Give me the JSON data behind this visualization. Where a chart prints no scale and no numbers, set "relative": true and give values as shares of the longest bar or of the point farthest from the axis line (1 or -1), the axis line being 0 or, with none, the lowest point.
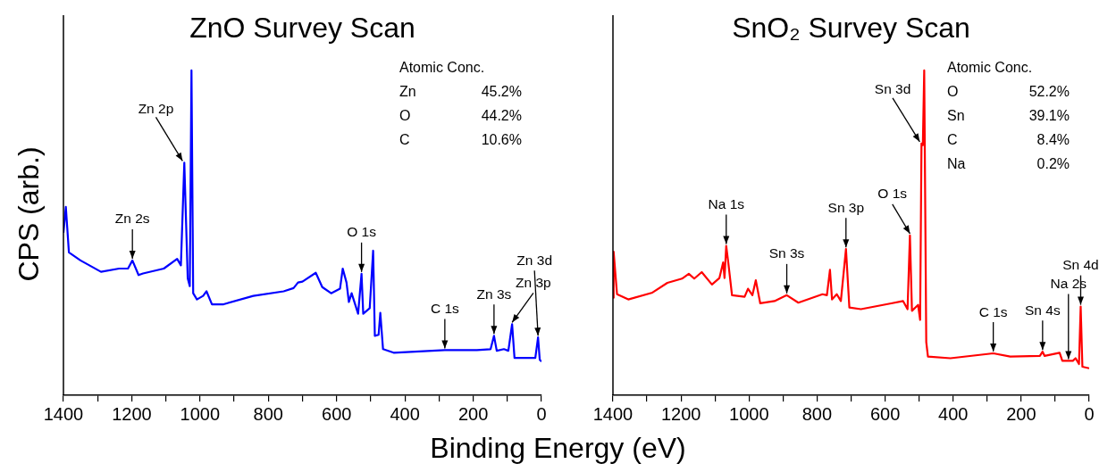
{
  "chart_data": [
    {
      "type": "line",
      "title": "ZnO Survey Scan",
      "xlabel": "Binding Energy (eV)",
      "ylabel": "CPS (arb.)",
      "relative": true,
      "color": "#0000ff",
      "marker": "none",
      "x": [
        1400,
        1393,
        1384,
        1350,
        1290,
        1237,
        1211,
        1198,
        1180,
        1167,
        1106,
        1067,
        1056,
        1046,
        1036,
        1030,
        1025,
        1020,
        1009,
        991,
        981,
        965,
        931,
        844,
        755,
        726,
        713,
        700,
        661,
        642,
        616,
        590,
        582,
        571,
        564,
        556,
        537,
        527,
        522,
        503,
        493,
        488,
        477,
        472,
        464,
        433,
        283,
        189,
        149,
        139,
        131,
        110,
        97,
        86,
        79,
        18,
        10,
        5,
        0
      ],
      "values": [
        0.5,
        0.58,
        0.44,
        0.415,
        0.38,
        0.39,
        0.39,
        0.415,
        0.37,
        0.375,
        0.39,
        0.42,
        0.4,
        0.716,
        0.36,
        0.336,
        1.0,
        0.314,
        0.295,
        0.306,
        0.32,
        0.28,
        0.28,
        0.306,
        0.32,
        0.33,
        0.347,
        0.35,
        0.377,
        0.333,
        0.314,
        0.328,
        0.39,
        0.347,
        0.287,
        0.314,
        0.251,
        0.374,
        0.251,
        0.268,
        0.445,
        0.183,
        0.186,
        0.254,
        0.142,
        0.131,
        0.139,
        0.139,
        0.142,
        0.183,
        0.137,
        0.142,
        0.137,
        0.219,
        0.115,
        0.115,
        0.178,
        0.109,
        0.104
      ],
      "xlim": [
        1400,
        0
      ],
      "xticks": [
        1400,
        {
          "value": 1300,
          "label": null
        },
        1200,
        {
          "value": 1100,
          "label": null
        },
        1000,
        {
          "value": 900,
          "label": null
        },
        800,
        {
          "value": 700,
          "label": null
        },
        600,
        {
          "value": 500,
          "label": null
        },
        400,
        {
          "value": 300,
          "label": null
        },
        200,
        {
          "value": 100,
          "label": null
        },
        0
      ],
      "annotations": [
        {
          "text": "Zn 2s",
          "x": 1198,
          "y": 0.415
        },
        {
          "text": "Zn 2p",
          "x": 1046,
          "y": 0.716
        },
        {
          "text": "O 1s",
          "x": 527,
          "y": 0.374
        },
        {
          "text": "C 1s",
          "x": 283,
          "y": 0.139
        },
        {
          "text": "Zn 3s",
          "x": 139,
          "y": 0.183
        },
        {
          "text": "Zn 3p",
          "x": 86,
          "y": 0.219
        },
        {
          "text": "Zn 3d",
          "x": 10,
          "y": 0.178
        },
        "Atomic Conc.",
        "Zn\t45.2%",
        "O\t44.2%",
        "C\t10.6%"
      ]
    },
    {
      "type": "line",
      "title": "SnO₂ Survey Scan",
      "relative": true,
      "color": "#ff0000",
      "marker": "none",
      "x": [
        1400,
        1398,
        1388,
        1355,
        1284,
        1240,
        1197,
        1177,
        1161,
        1139,
        1109,
        1087,
        1076,
        1072,
        1067,
        1061,
        1050,
        1013,
        1003,
        990,
        980,
        967,
        925,
        889,
        855,
        784,
        771,
        762,
        756,
        742,
        730,
        715,
        705,
        671,
        582,
        547,
        534,
        527,
        521,
        503,
        497,
        493,
        489,
        485,
        479,
        474,
        408,
        282,
        232,
        145,
        137,
        131,
        87,
        79,
        48,
        40,
        30,
        25,
        20,
        0
      ],
      "values": [
        0.3,
        0.442,
        0.311,
        0.295,
        0.316,
        0.346,
        0.359,
        0.374,
        0.359,
        0.379,
        0.341,
        0.361,
        0.409,
        0.361,
        0.46,
        0.409,
        0.308,
        0.303,
        0.328,
        0.308,
        0.354,
        0.283,
        0.29,
        0.308,
        0.285,
        0.311,
        0.308,
        0.386,
        0.295,
        0.311,
        0.29,
        0.45,
        0.27,
        0.265,
        0.283,
        0.29,
        0.265,
        0.492,
        0.26,
        0.278,
        0.232,
        0.775,
        0.77,
        1.0,
        0.164,
        0.119,
        0.114,
        0.129,
        0.119,
        0.121,
        0.134,
        0.121,
        0.131,
        0.106,
        0.106,
        0.114,
        0.096,
        0.273,
        0.088,
        0.083
      ],
      "xlim": [
        1400,
        0
      ],
      "xticks": [
        1400,
        {
          "value": 1300,
          "label": null
        },
        1200,
        {
          "value": 1100,
          "label": null
        },
        1000,
        {
          "value": 900,
          "label": null
        },
        800,
        {
          "value": 700,
          "label": null
        },
        600,
        {
          "value": 500,
          "label": null
        },
        400,
        {
          "value": 300,
          "label": null
        },
        200,
        {
          "value": 100,
          "label": null
        },
        0
      ],
      "annotations": [
        {
          "text": "Na 1s",
          "x": 1067,
          "y": 0.46
        },
        {
          "text": "Sn 3s",
          "x": 889,
          "y": 0.308
        },
        {
          "text": "Sn 3p",
          "x": 715,
          "y": 0.45
        },
        {
          "text": "O 1s",
          "x": 527,
          "y": 0.492
        },
        {
          "text": "Sn 3d",
          "x": 493,
          "y": 0.775
        },
        {
          "text": "C 1s",
          "x": 282,
          "y": 0.129
        },
        {
          "text": "Sn 4s",
          "x": 137,
          "y": 0.134
        },
        {
          "text": "Na 2s",
          "x": 61,
          "y": 0.106
        },
        {
          "text": "Sn 4d",
          "x": 25,
          "y": 0.273
        },
        "Atomic Conc.",
        "O\t52.2%",
        "Sn\t39.1%",
        "C\t8.4%",
        "Na\t0.2%"
      ]
    }
  ]
}
